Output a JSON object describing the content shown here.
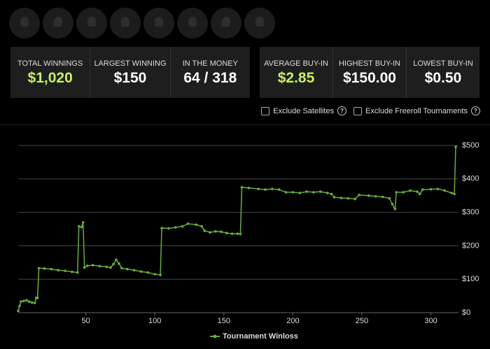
{
  "stats_left": [
    {
      "label": "TOTAL WINNINGS",
      "value": "$1,020"
    },
    {
      "label": "LARGEST WINNING",
      "value": "$150"
    },
    {
      "label": "IN THE MONEY",
      "value": "64 / 318"
    }
  ],
  "stats_right": [
    {
      "label": "AVERAGE BUY-IN",
      "value": "$2.85"
    },
    {
      "label": "HIGHEST BUY-IN",
      "value": "$150.00"
    },
    {
      "label": "LOWEST BUY-IN",
      "value": "$0.50"
    }
  ],
  "filters": [
    "Exclude Satellites",
    "Exclude Freeroll Tournaments"
  ],
  "chart_data": {
    "type": "line",
    "x": [
      1,
      2,
      3,
      5,
      7,
      9,
      11,
      13,
      14,
      15,
      16,
      20,
      25,
      30,
      35,
      40,
      44,
      45,
      47,
      48,
      49,
      51,
      55,
      60,
      65,
      68,
      70,
      72,
      74,
      76,
      80,
      85,
      90,
      95,
      100,
      104,
      105,
      110,
      115,
      120,
      124,
      130,
      134,
      136,
      140,
      144,
      148,
      152,
      156,
      160,
      162,
      163,
      168,
      175,
      180,
      185,
      190,
      195,
      200,
      205,
      210,
      215,
      220,
      225,
      228,
      230,
      235,
      240,
      245,
      248,
      255,
      260,
      265,
      270,
      272,
      274,
      275,
      280,
      285,
      290,
      292,
      294,
      300,
      305,
      310,
      315,
      317,
      318
    ],
    "series": [
      {
        "name": "Tournament Winloss",
        "color": "#6aad3a",
        "values": [
          5,
          20,
          33,
          35,
          37,
          33,
          30,
          29,
          44,
          44,
          133,
          132,
          130,
          127,
          125,
          122,
          120,
          258,
          256,
          270,
          135,
          140,
          142,
          139,
          137,
          135,
          145,
          158,
          147,
          133,
          130,
          127,
          123,
          120,
          115,
          113,
          253,
          252,
          255,
          258,
          266,
          263,
          258,
          245,
          240,
          243,
          242,
          238,
          236,
          236,
          235,
          375,
          373,
          370,
          368,
          370,
          368,
          360,
          360,
          358,
          362,
          360,
          362,
          358,
          355,
          345,
          343,
          342,
          340,
          352,
          350,
          348,
          346,
          342,
          325,
          310,
          360,
          360,
          365,
          362,
          355,
          368,
          369,
          370,
          365,
          358,
          355,
          496
        ]
      }
    ],
    "xlim": [
      1,
      320
    ],
    "xticks": [
      50,
      100,
      150,
      200,
      250,
      300
    ],
    "ylim": [
      0,
      500
    ],
    "yticks": [
      {
        "value": 0,
        "label": "$0"
      },
      {
        "value": 100,
        "label": "$100"
      },
      {
        "value": 200,
        "label": "$200"
      },
      {
        "value": 300,
        "label": "$300"
      },
      {
        "value": 400,
        "label": "$400"
      },
      {
        "value": 500,
        "label": "$500"
      }
    ],
    "grid": true
  }
}
